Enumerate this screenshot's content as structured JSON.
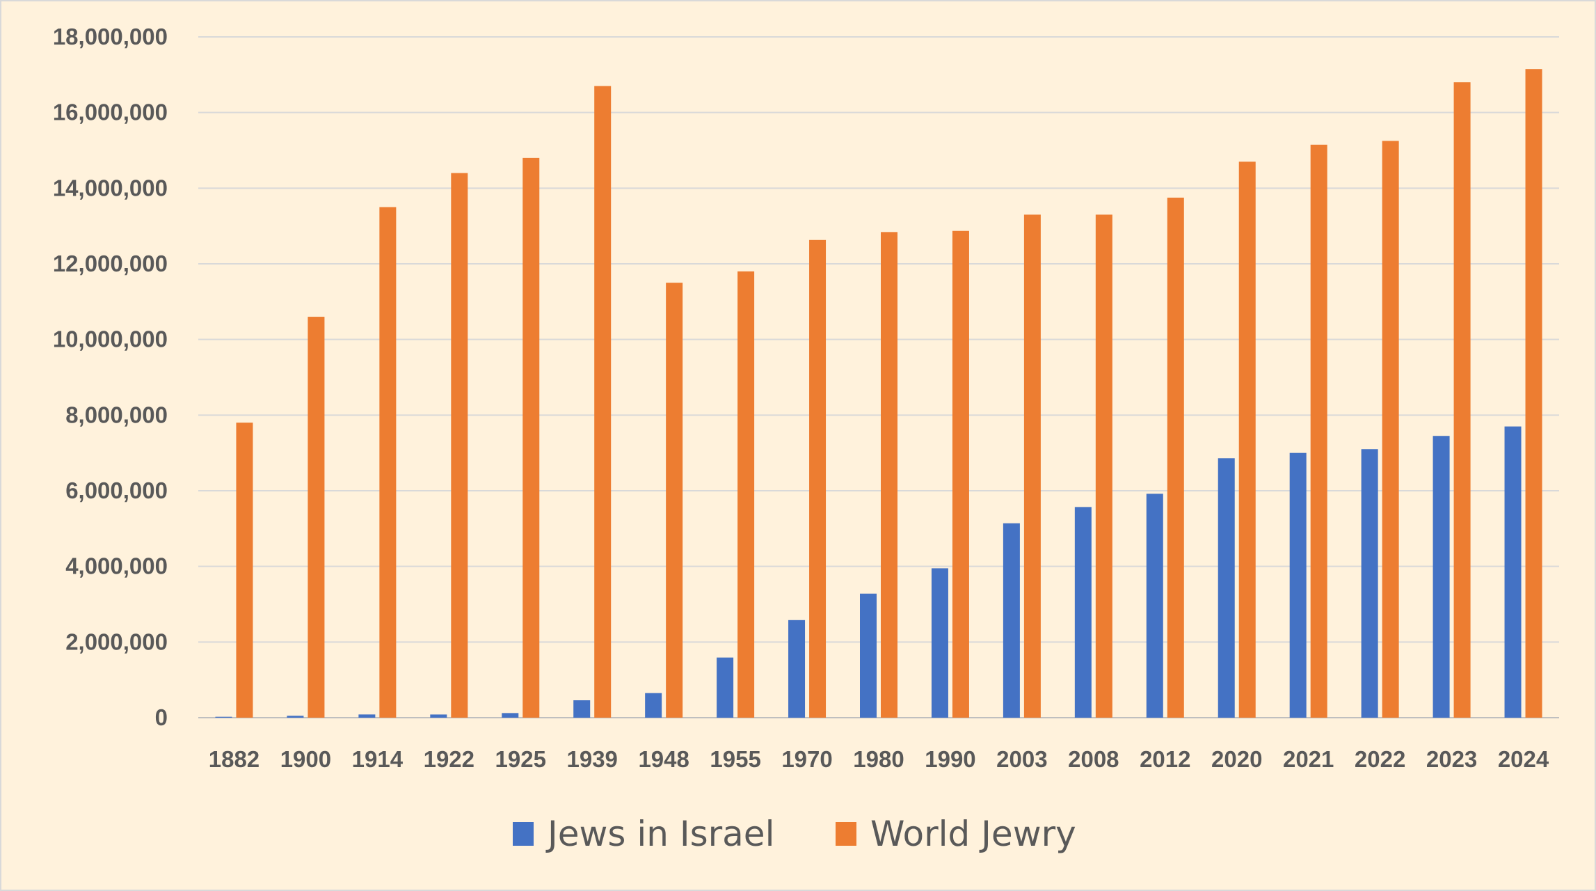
{
  "chart_data": {
    "type": "bar",
    "title": "",
    "xlabel": "",
    "ylabel": "",
    "ylim": [
      0,
      18000000
    ],
    "ytick_step": 2000000,
    "grid": true,
    "legend_position": "bottom",
    "categories": [
      "1882",
      "1900",
      "1914",
      "1922",
      "1925",
      "1939",
      "1948",
      "1955",
      "1970",
      "1980",
      "1990",
      "2003",
      "2008",
      "2012",
      "2020",
      "2021",
      "2022",
      "2023",
      "2024"
    ],
    "series": [
      {
        "name": "Jews in Israel",
        "color": "#4472C4",
        "values": [
          24000,
          50000,
          85000,
          84000,
          122000,
          460000,
          650000,
          1590000,
          2580000,
          3280000,
          3950000,
          5140000,
          5570000,
          5920000,
          6860000,
          7000000,
          7100000,
          7450000,
          7700000
        ]
      },
      {
        "name": "World Jewry",
        "color": "#ED7D31",
        "values": [
          7800000,
          10600000,
          13500000,
          14400000,
          14800000,
          16700000,
          11500000,
          11800000,
          12630000,
          12840000,
          12870000,
          13300000,
          13300000,
          13750000,
          14700000,
          15150000,
          15250000,
          16800000,
          17150000
        ]
      }
    ],
    "ytick_labels": [
      "0",
      "2,000,000",
      "4,000,000",
      "6,000,000",
      "8,000,000",
      "10,000,000",
      "12,000,000",
      "14,000,000",
      "16,000,000",
      "18,000,000"
    ]
  }
}
